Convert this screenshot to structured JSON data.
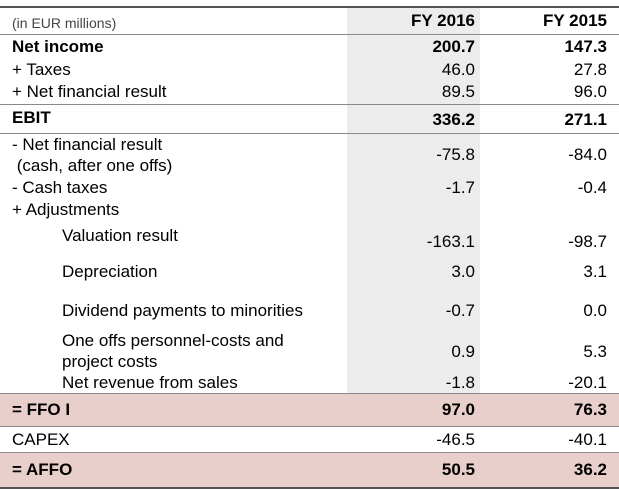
{
  "header": {
    "unit_label": "(in EUR millions)",
    "col_2016": "FY 2016",
    "col_2015": "FY 2015"
  },
  "rows": [
    {
      "label": "Net income",
      "fy2016": "200.7",
      "fy2015": "147.3"
    },
    {
      "label": "+ Taxes",
      "fy2016": "46.0",
      "fy2015": "27.8"
    },
    {
      "label": "+ Net financial result",
      "fy2016": "89.5",
      "fy2015": "96.0"
    },
    {
      "label": "EBIT",
      "fy2016": "336.2",
      "fy2015": "271.1"
    },
    {
      "label_line1": "- Net financial result",
      "label_line2": " (cash, after one offs)",
      "fy2016": "-75.8",
      "fy2015": "-84.0"
    },
    {
      "label": "- Cash taxes",
      "fy2016": "-1.7",
      "fy2015": "-0.4"
    },
    {
      "label": "+ Adjustments"
    },
    {
      "label": "Valuation result",
      "fy2016": "-163.1",
      "fy2015": "-98.7"
    },
    {
      "label": "Depreciation",
      "fy2016": "3.0",
      "fy2015": "3.1"
    },
    {
      "label": "Dividend payments to minorities",
      "fy2016": "-0.7",
      "fy2015": "0.0"
    },
    {
      "label_line1": "One offs personnel-costs and",
      "label_line2": "project costs",
      "fy2016": "0.9",
      "fy2015": "5.3"
    },
    {
      "label": "Net revenue from sales",
      "fy2016": "-1.8",
      "fy2015": "-20.1"
    },
    {
      "label": "= FFO I",
      "fy2016": "97.0",
      "fy2015": "76.3"
    },
    {
      "label": "CAPEX",
      "fy2016": "-46.5",
      "fy2015": "-40.1"
    },
    {
      "label": "= AFFO",
      "fy2016": "50.5",
      "fy2015": "36.2"
    }
  ],
  "colors": {
    "highlight_band": "#e8cfcb",
    "fy2016_column_shade": "#ececec"
  }
}
